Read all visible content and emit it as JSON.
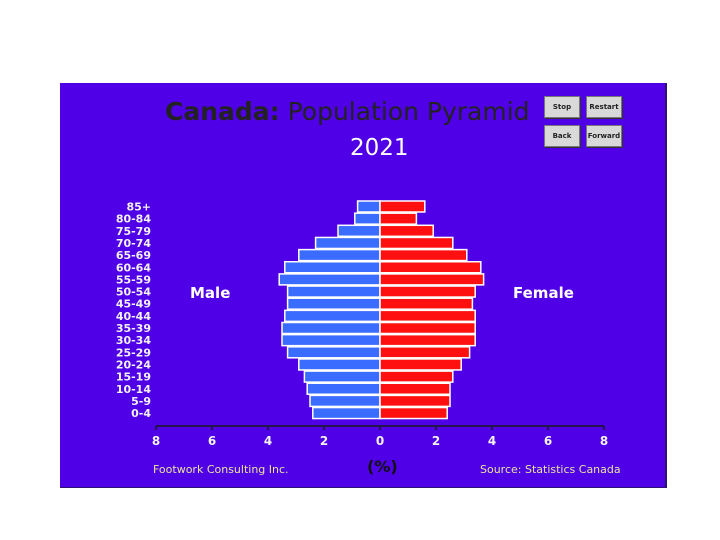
{
  "title": {
    "country": "Canada:",
    "rest": "Population Pyramid"
  },
  "year": "2021",
  "buttons": {
    "stop": "Stop",
    "restart": "Restart",
    "back": "Back",
    "forward": "Forward"
  },
  "labels": {
    "male": "Male",
    "female": "Female"
  },
  "credits": {
    "left": "Footwork Consulting Inc.",
    "right": "Source: Statistics Canada"
  },
  "colors": {
    "background": "#5000e6",
    "male": "#3a6cff",
    "female": "#ff1010"
  },
  "chart_data": {
    "type": "bar",
    "orientation": "horizontal-pyramid",
    "categories": [
      "85+",
      "80-84",
      "75-79",
      "70-74",
      "65-69",
      "60-64",
      "55-59",
      "50-54",
      "45-49",
      "40-44",
      "35-39",
      "30-34",
      "25-29",
      "20-24",
      "15-19",
      "10-14",
      "5-9",
      "0-4"
    ],
    "series": [
      {
        "name": "Male",
        "values": [
          0.8,
          0.9,
          1.5,
          2.3,
          2.9,
          3.4,
          3.6,
          3.3,
          3.3,
          3.4,
          3.5,
          3.5,
          3.3,
          2.9,
          2.7,
          2.6,
          2.5,
          2.4
        ]
      },
      {
        "name": "Female",
        "values": [
          1.6,
          1.3,
          1.9,
          2.6,
          3.1,
          3.6,
          3.7,
          3.4,
          3.3,
          3.4,
          3.4,
          3.4,
          3.2,
          2.9,
          2.6,
          2.5,
          2.5,
          2.4
        ]
      }
    ],
    "xlabel": "(%)",
    "xticks": [
      8,
      6,
      4,
      2,
      0,
      2,
      4,
      6,
      8
    ],
    "xlim": [
      -8,
      8
    ]
  }
}
